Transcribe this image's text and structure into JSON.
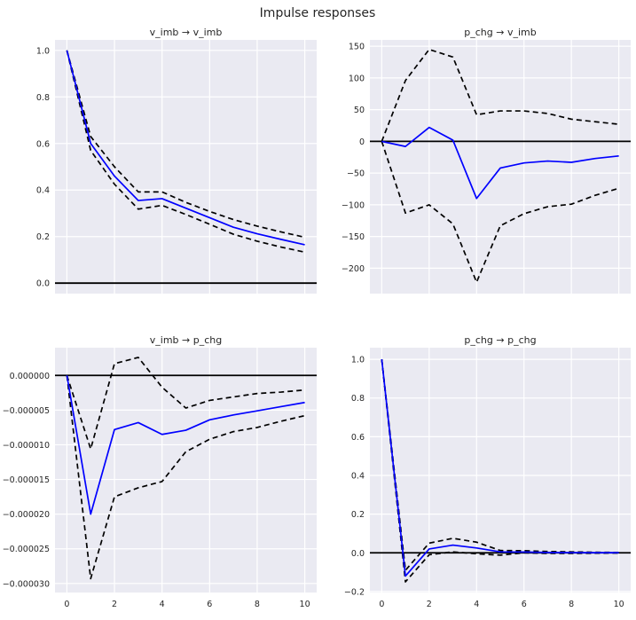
{
  "figure": {
    "title": "Impulse responses"
  },
  "chart_data": [
    {
      "type": "line",
      "title": "v_imb → v_imb",
      "x": [
        0,
        1,
        2,
        3,
        4,
        5,
        6,
        7,
        8,
        9,
        10
      ],
      "xlim": [
        -0.5,
        10.5
      ],
      "ylim": [
        -0.045,
        1.045
      ],
      "yticks": [
        0.0,
        0.2,
        0.4,
        0.6,
        0.8,
        1.0
      ],
      "ytick_labels": [
        "0.0",
        "0.2",
        "0.4",
        "0.6",
        "0.8",
        "1.0"
      ],
      "xticks": [],
      "xtick_labels": [],
      "zero_line": 0,
      "series": [
        {
          "role": "response",
          "color": "#0000ff",
          "dash": "",
          "values": [
            1.0,
            0.6,
            0.46,
            0.355,
            0.363,
            0.322,
            0.281,
            0.24,
            0.212,
            0.188,
            0.165
          ]
        },
        {
          "role": "upper",
          "color": "#000000",
          "dash": "6,4",
          "values": [
            1.0,
            0.63,
            0.5,
            0.392,
            0.392,
            0.347,
            0.308,
            0.273,
            0.245,
            0.22,
            0.197
          ]
        },
        {
          "role": "lower",
          "color": "#000000",
          "dash": "6,4",
          "values": [
            1.0,
            0.57,
            0.425,
            0.318,
            0.334,
            0.295,
            0.253,
            0.21,
            0.18,
            0.155,
            0.133
          ]
        }
      ]
    },
    {
      "type": "line",
      "title": "p_chg → v_imb",
      "x": [
        0,
        1,
        2,
        3,
        4,
        5,
        6,
        7,
        8,
        9,
        10
      ],
      "xlim": [
        -0.5,
        10.5
      ],
      "ylim": [
        -240,
        160
      ],
      "yticks": [
        -200,
        -150,
        -100,
        -50,
        0,
        50,
        100,
        150
      ],
      "ytick_labels": [
        "−200",
        "−150",
        "−100",
        "−50",
        "0",
        "50",
        "100",
        "150"
      ],
      "xticks": [],
      "xtick_labels": [],
      "zero_line": 0,
      "series": [
        {
          "role": "response",
          "color": "#0000ff",
          "dash": "",
          "values": [
            0,
            -8,
            22,
            2,
            -90,
            -42,
            -34,
            -31,
            -33,
            -27,
            -23
          ]
        },
        {
          "role": "upper",
          "color": "#000000",
          "dash": "6,4",
          "values": [
            0,
            96,
            145,
            133,
            42,
            48,
            48,
            44,
            35,
            31,
            27
          ]
        },
        {
          "role": "lower",
          "color": "#000000",
          "dash": "6,4",
          "values": [
            0,
            -113,
            -100,
            -130,
            -222,
            -133,
            -114,
            -103,
            -99,
            -85,
            -74
          ]
        }
      ]
    },
    {
      "type": "line",
      "title": "v_imb → p_chg",
      "x": [
        0,
        1,
        2,
        3,
        4,
        5,
        6,
        7,
        8,
        9,
        10
      ],
      "xlim": [
        -0.5,
        10.5
      ],
      "ylim": [
        -3.13e-05,
        4e-06
      ],
      "yticks": [
        -3e-05,
        -2.5e-05,
        -2e-05,
        -1.5e-05,
        -1e-05,
        -5e-06,
        0
      ],
      "ytick_labels": [
        "−0.000030",
        "−0.000025",
        "−0.000020",
        "−0.000015",
        "−0.000010",
        "−0.000005",
        "0.000000"
      ],
      "xticks": [
        0,
        2,
        4,
        6,
        8,
        10
      ],
      "xtick_labels": [
        "0",
        "2",
        "4",
        "6",
        "8",
        "10"
      ],
      "zero_line": 0,
      "series": [
        {
          "role": "response",
          "color": "#0000ff",
          "dash": "",
          "values": [
            0,
            -2e-05,
            -7.8e-06,
            -6.8e-06,
            -8.5e-06,
            -7.9e-06,
            -6.4e-06,
            -5.7e-06,
            -5.1e-06,
            -4.5e-06,
            -3.9e-06
          ]
        },
        {
          "role": "upper",
          "color": "#000000",
          "dash": "6,4",
          "values": [
            0,
            -1.06e-05,
            1.7e-06,
            2.6e-06,
            -1.7e-06,
            -4.7e-06,
            -3.6e-06,
            -3.1e-06,
            -2.6e-06,
            -2.4e-06,
            -2.1e-06
          ]
        },
        {
          "role": "lower",
          "color": "#000000",
          "dash": "6,4",
          "values": [
            0,
            -2.93e-05,
            -1.75e-05,
            -1.62e-05,
            -1.53e-05,
            -1.1e-05,
            -9.2e-06,
            -8.1e-06,
            -7.5e-06,
            -6.6e-06,
            -5.8e-06
          ]
        }
      ]
    },
    {
      "type": "line",
      "title": "p_chg → p_chg",
      "x": [
        0,
        1,
        2,
        3,
        4,
        5,
        6,
        7,
        8,
        9,
        10
      ],
      "xlim": [
        -0.5,
        10.5
      ],
      "ylim": [
        -0.205,
        1.06
      ],
      "yticks": [
        -0.2,
        0.0,
        0.2,
        0.4,
        0.6,
        0.8,
        1.0
      ],
      "ytick_labels": [
        "−0.2",
        "0.0",
        "0.2",
        "0.4",
        "0.6",
        "0.8",
        "1.0"
      ],
      "xticks": [
        0,
        2,
        4,
        6,
        8,
        10
      ],
      "xtick_labels": [
        "0",
        "2",
        "4",
        "6",
        "8",
        "10"
      ],
      "zero_line": 0,
      "series": [
        {
          "role": "response",
          "color": "#0000ff",
          "dash": "",
          "values": [
            1.0,
            -0.12,
            0.02,
            0.04,
            0.025,
            0.005,
            0.004,
            0.002,
            0.001,
            0.0008,
            0.0005
          ]
        },
        {
          "role": "upper",
          "color": "#000000",
          "dash": "6,4",
          "values": [
            1.0,
            -0.09,
            0.05,
            0.075,
            0.055,
            0.012,
            0.011,
            0.007,
            0.005,
            0.003,
            0.002
          ]
        },
        {
          "role": "lower",
          "color": "#000000",
          "dash": "6,4",
          "values": [
            1.0,
            -0.15,
            -0.01,
            0.005,
            -0.005,
            -0.012,
            0.0,
            -0.003,
            -0.003,
            -0.002,
            -0.001
          ]
        }
      ]
    }
  ]
}
